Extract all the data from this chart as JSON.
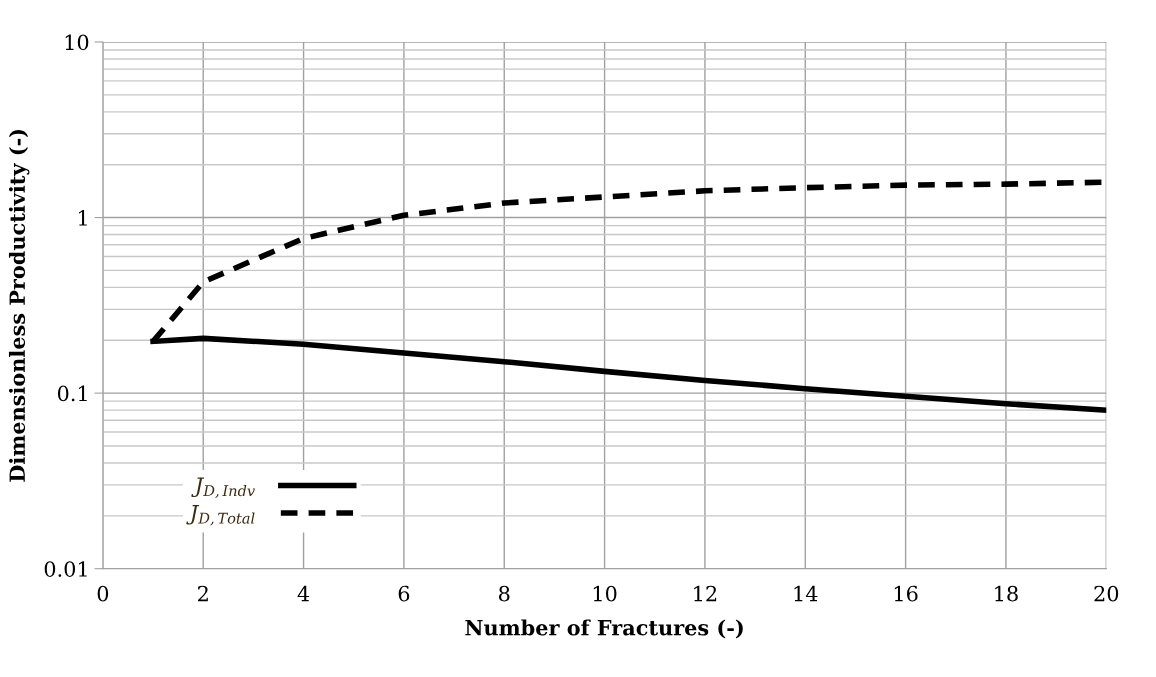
{
  "chart_data": {
    "type": "line",
    "xlabel": "Number of Fractures (-)",
    "ylabel": "Dimensionless Productivity (-)",
    "x": [
      1,
      2,
      4,
      6,
      8,
      10,
      12,
      14,
      16,
      18,
      20
    ],
    "series": [
      {
        "name": "J$_{D,Indv}$",
        "color": "#000000",
        "line_style": "solid",
        "values": [
          0.197,
          0.205,
          0.19,
          0.169,
          0.151,
          0.133,
          0.118,
          0.106,
          0.096,
          0.087,
          0.08
        ]
      },
      {
        "name": "J$_{D,Total}$",
        "color": "#000000",
        "line_style": "dashed",
        "values": [
          0.197,
          0.43,
          0.76,
          1.03,
          1.21,
          1.31,
          1.42,
          1.48,
          1.53,
          1.55,
          1.59
        ]
      }
    ],
    "log": "y",
    "xlim": [
      0,
      20
    ],
    "xticks": [
      0,
      2,
      4,
      6,
      8,
      10,
      12,
      14,
      16,
      18,
      20
    ],
    "ylim": [
      0.01,
      10
    ],
    "yticks": [
      0.01,
      0.1,
      1,
      10
    ],
    "grid": true,
    "legend": "bottom left",
    "marker": "none"
  }
}
